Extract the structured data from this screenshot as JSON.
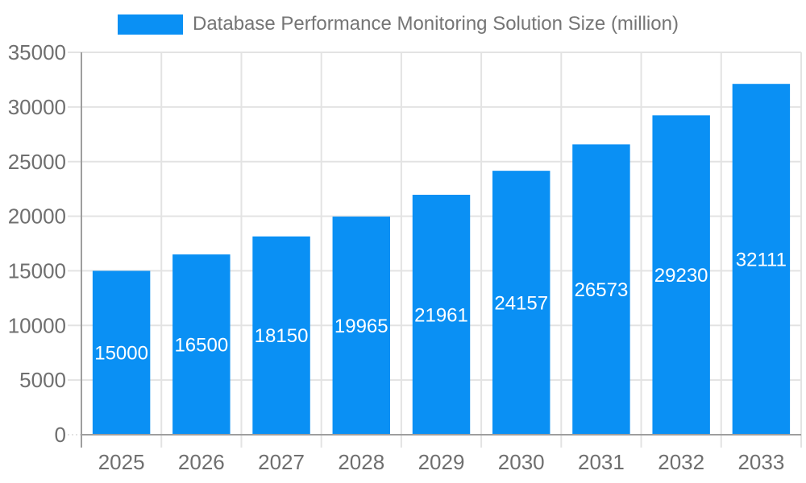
{
  "legend": {
    "label": "Database Performance Monitoring Solution Size (million)"
  },
  "chart_data": {
    "type": "bar",
    "title": "Database Performance Monitoring Solution Size (million)",
    "categories": [
      "2025",
      "2026",
      "2027",
      "2028",
      "2029",
      "2030",
      "2031",
      "2032",
      "2033"
    ],
    "values": [
      15000,
      16500,
      18150,
      19965,
      21961,
      24157,
      26573,
      29230,
      32111
    ],
    "bar_labels": [
      "15000",
      "16500",
      "18150",
      "19965",
      "21961",
      "24157",
      "26573",
      "29230",
      "32111"
    ],
    "xlabel": "",
    "ylabel": "",
    "ylim": [
      0,
      35000
    ],
    "ytick_step": 5000,
    "yticks": [
      0,
      5000,
      10000,
      15000,
      20000,
      25000,
      30000,
      35000
    ],
    "grid": true,
    "legend_position": "top",
    "colors": {
      "bar": "#0A90F4",
      "bar_label_text": "#FFFFFF",
      "gridline": "#E3E3E3",
      "axis_line": "#9E9E9E",
      "axis_text": "#6F6F6F",
      "legend_text": "#757575",
      "background": "#FFFFFF"
    }
  }
}
